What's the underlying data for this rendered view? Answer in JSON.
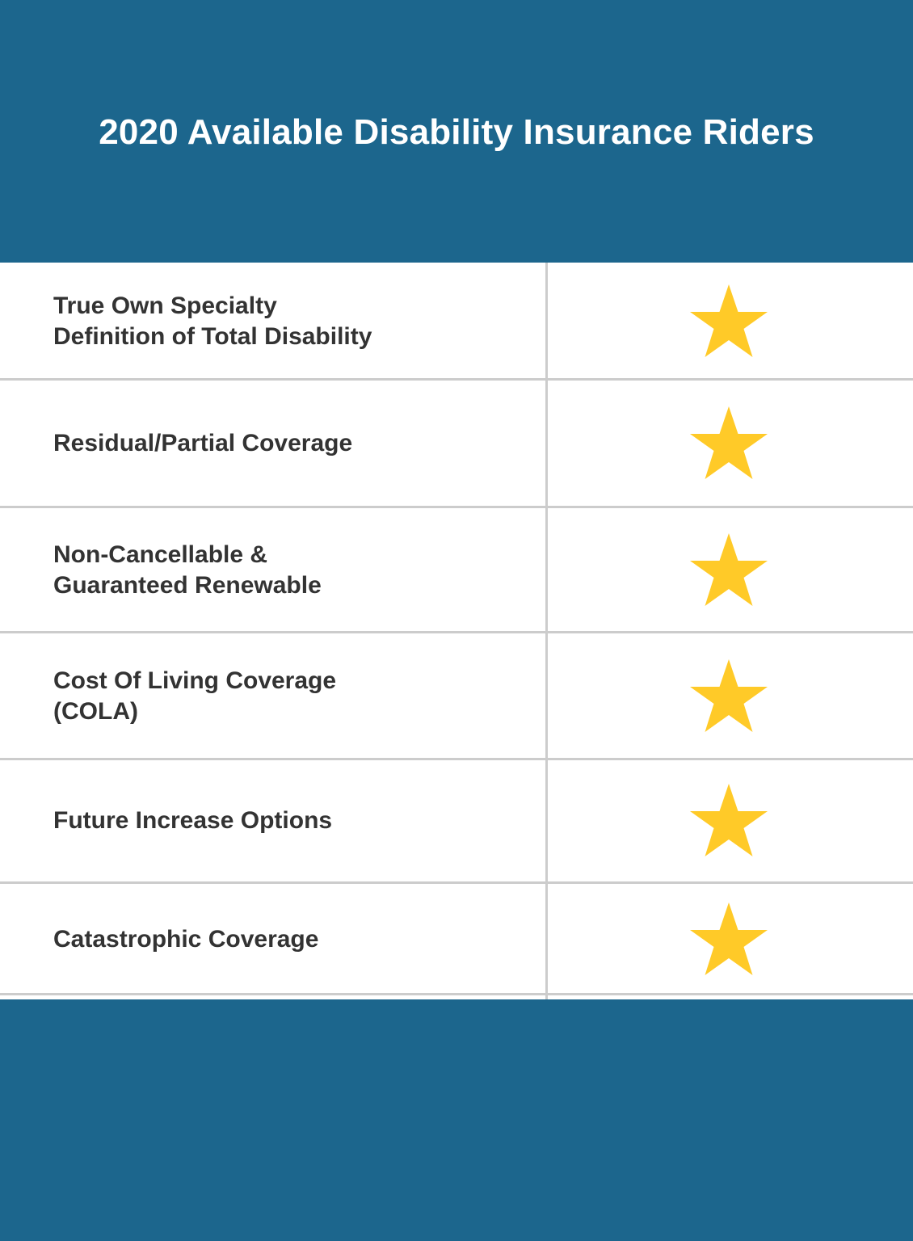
{
  "header": {
    "title": "2020 Available Disability Insurance Riders"
  },
  "colors": {
    "header_bg": "#1c668d",
    "star": "#ffca28",
    "divider": "#cccccc",
    "label_text": "#333333"
  },
  "riders": [
    {
      "label": "True Own Specialty\nDefinition of Total Disability",
      "included": true,
      "icon": "star-icon"
    },
    {
      "label": "Residual/Partial Coverage",
      "included": true,
      "icon": "star-icon"
    },
    {
      "label": "Non-Cancellable &\nGuaranteed Renewable",
      "included": true,
      "icon": "star-icon"
    },
    {
      "label": "Cost Of Living Coverage\n(COLA)",
      "included": true,
      "icon": "star-icon"
    },
    {
      "label": "Future Increase Options",
      "included": true,
      "icon": "star-icon"
    },
    {
      "label": "Catastrophic Coverage",
      "included": true,
      "icon": "star-icon"
    }
  ]
}
